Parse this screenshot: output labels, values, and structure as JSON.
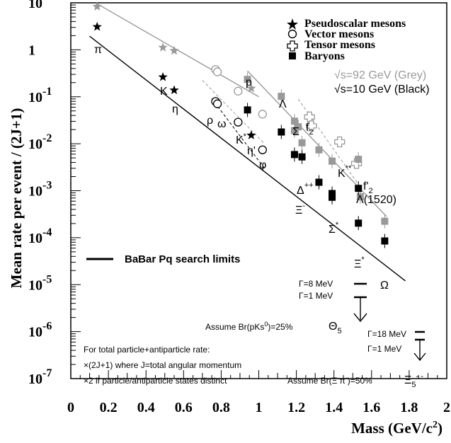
{
  "chart_data": {
    "type": "scatter",
    "xlabel": "Mass (GeV/c",
    "xlabel_sup": "2",
    "xlabel_end": ")",
    "ylabel": "Mean rate per event / (2J+1)",
    "xlim": [
      0,
      2
    ],
    "ylim_log10": [
      -7,
      1
    ],
    "x_ticks": [
      "0",
      "0.2",
      "0.4",
      "0.6",
      "0.8",
      "1",
      "1.2",
      "1.4",
      "1.6",
      "1.8",
      "2"
    ],
    "y_ticks": [
      {
        "base": "10",
        "exp": ""
      },
      {
        "base": "1",
        "exp": ""
      },
      {
        "base": "10",
        "exp": "-1"
      },
      {
        "base": "10",
        "exp": "-2"
      },
      {
        "base": "10",
        "exp": "-3"
      },
      {
        "base": "10",
        "exp": "-4"
      },
      {
        "base": "10",
        "exp": "-5"
      },
      {
        "base": "10",
        "exp": "-6"
      },
      {
        "base": "10",
        "exp": "-7"
      }
    ],
    "legend": [
      "Pseudoscalar mesons",
      "Vector mesons",
      "Tensor mesons",
      "Baryons"
    ],
    "energy_labels": {
      "grey": "√s=92 GeV (Grey)",
      "black": "√s=10 GeV (Black)"
    },
    "colors": {
      "grey": "#999999",
      "black": "#000000"
    },
    "babar_label": "BaBar Pq search limits",
    "series": [
      {
        "name": "√s=92 GeV (Grey)",
        "color": "#999999",
        "pseudoscalar": [
          [
            0.14,
            0.92
          ],
          [
            0.49,
            0.05
          ],
          [
            0.55,
            -0.02
          ],
          [
            0.96,
            -0.82
          ]
        ],
        "vector": [
          [
            0.77,
            -0.42
          ],
          [
            0.78,
            -0.47
          ],
          [
            0.89,
            -0.88
          ],
          [
            1.02,
            -1.37
          ]
        ],
        "tensor": [
          [
            1.27,
            -1.43
          ],
          [
            1.28,
            -1.62
          ],
          [
            1.43,
            -1.96
          ],
          [
            1.52,
            -2.42
          ]
        ],
        "baryon": [
          [
            0.94,
            -0.63
          ],
          [
            1.12,
            -0.99
          ],
          [
            1.19,
            -1.52
          ],
          [
            1.19,
            -1.72
          ],
          [
            1.21,
            -1.64
          ],
          [
            1.23,
            -1.98
          ],
          [
            1.32,
            -2.13
          ],
          [
            1.39,
            -2.37
          ],
          [
            1.53,
            -2.33
          ],
          [
            1.54,
            -3.13
          ],
          [
            1.67,
            -3.65
          ]
        ],
        "fit": [
          [
            0.14,
            0.98
          ],
          [
            1.0,
            -1.0
          ],
          [
            0.94,
            -0.45
          ],
          [
            1.68,
            -3.55
          ],
          [
            0.7,
            -0.65
          ],
          [
            1.03,
            -2.0
          ],
          [
            1.21,
            -1.05
          ],
          [
            1.54,
            -2.92
          ]
        ]
      },
      {
        "name": "√s=10 GeV (Black)",
        "color": "#000000",
        "pseudoscalar": [
          [
            0.14,
            0.49
          ],
          [
            0.49,
            -0.58
          ],
          [
            0.55,
            -0.86
          ],
          [
            0.96,
            -1.82
          ]
        ],
        "vector": [
          [
            0.77,
            -1.1
          ],
          [
            0.78,
            -1.15
          ],
          [
            0.89,
            -1.54
          ],
          [
            1.02,
            -2.13
          ]
        ],
        "tensor": [],
        "baryon": [
          [
            0.94,
            -1.28
          ],
          [
            1.12,
            -1.75
          ],
          [
            1.19,
            -2.23
          ],
          [
            1.23,
            -2.28
          ],
          [
            1.32,
            -2.82
          ],
          [
            1.39,
            -3.06
          ],
          [
            1.39,
            -3.14
          ],
          [
            1.53,
            -2.95
          ],
          [
            1.53,
            -3.69
          ],
          [
            1.67,
            -4.07
          ]
        ],
        "fit": [
          [
            0.1,
            0.29
          ],
          [
            1.78,
            -4.92
          ],
          [
            0.75,
            -1.04
          ],
          [
            1.03,
            -2.52
          ]
        ]
      }
    ],
    "particle_labels": [
      {
        "text": "π",
        "sup": ""
      },
      {
        "text": "K",
        "sup": ""
      },
      {
        "text": "η",
        "sup": ""
      },
      {
        "text": "p",
        "sup": ""
      },
      {
        "text": "Λ",
        "sup": ""
      },
      {
        "text": "ρ",
        "sup": ""
      },
      {
        "text": "ω",
        "sup": ""
      },
      {
        "text": "K",
        "sup": "*"
      },
      {
        "text": "η'",
        "sup": ""
      },
      {
        "text": "φ",
        "sup": ""
      },
      {
        "text": "Σ",
        "sup": ""
      },
      {
        "text": "f",
        "sub": "2"
      },
      {
        "text": "K",
        "sup": "**"
      },
      {
        "text": "Δ",
        "sup": "++"
      },
      {
        "text": "f'",
        "sub": "2"
      },
      {
        "text": "Λ(1520)",
        "sup": ""
      },
      {
        "text": "Ξ",
        "sup": "-"
      },
      {
        "text": "Σ",
        "sup": "*"
      },
      {
        "text": "Ξ",
        "sup": "*"
      },
      {
        "text": "Ω",
        "sup": ""
      }
    ],
    "pq_limits": [
      {
        "gamma_label": "Γ=8 MeV",
        "value_log10": -4.98
      },
      {
        "gamma_label": "Γ=1 MeV",
        "value_log10": -5.2
      },
      {
        "gamma_label": "Γ=18 MeV",
        "value_log10": -5.83
      },
      {
        "gamma_label": "Γ=1 MeV",
        "value_log10": -6.02
      }
    ],
    "assumptions": [
      {
        "text": "Assume Br(pKs",
        "sup": "0",
        "end": ")=25%",
        "symbol": "Θ",
        "symbol_sub": "5"
      },
      {
        "text": "Assume Br(Ξ",
        "sup": "-",
        "mid": "π",
        "sup2": "-",
        "end": ")=50%",
        "symbol": "Ξ",
        "symbol_sub": "5",
        "symbol_sup": "- -"
      }
    ],
    "notes": {
      "line1": "For total particle+antiparticle rate:",
      "line2": "×(2J+1)  where J=total angular momentum",
      "line3": "×2  if particle/antiparticle states distinct"
    }
  }
}
